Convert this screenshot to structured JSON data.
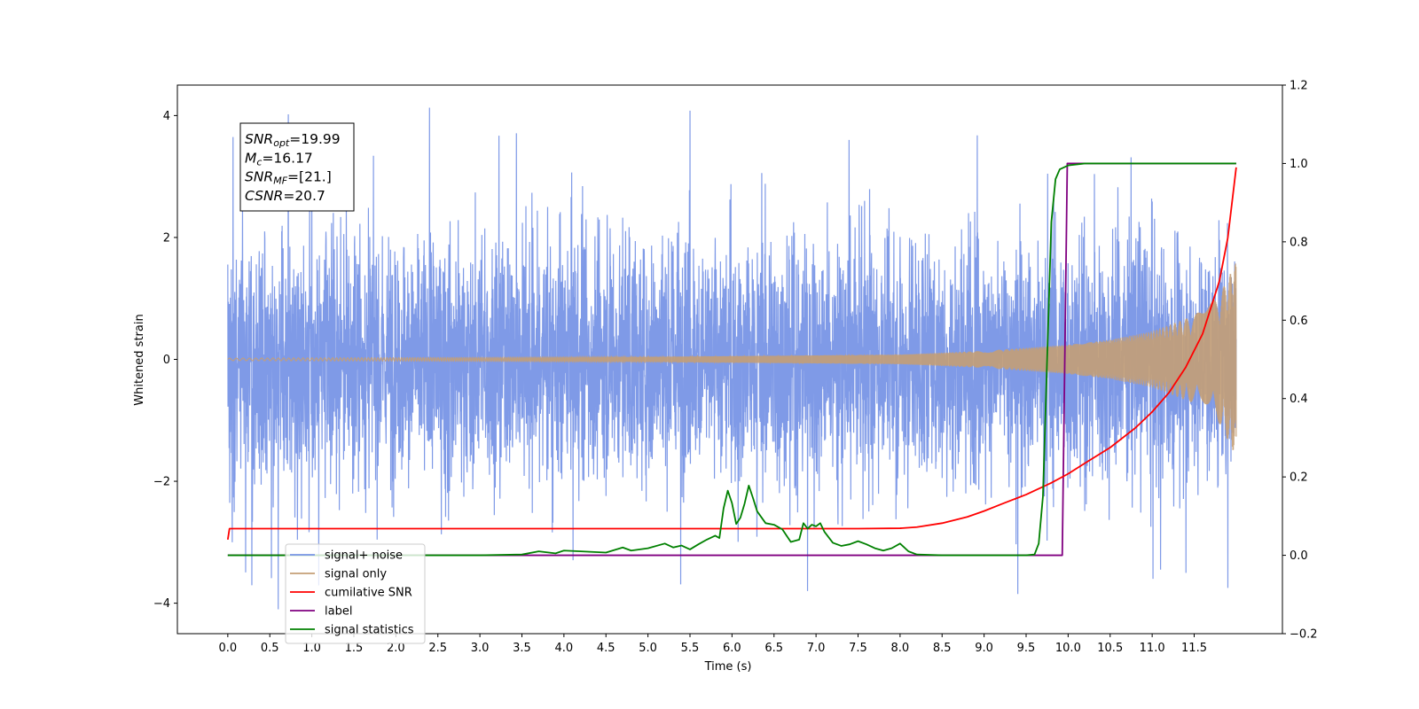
{
  "chart_data": {
    "type": "line",
    "xlabel": "Time (s)",
    "ylabel": "Whitened strain",
    "xlim": [
      -0.6,
      12.55
    ],
    "ylim": [
      -4.5,
      4.5
    ],
    "ylim_right": [
      -0.2,
      1.2
    ],
    "x_ticks": [
      "0.0",
      "0.5",
      "1.0",
      "1.5",
      "2.0",
      "2.5",
      "3.0",
      "3.5",
      "4.0",
      "4.5",
      "5.0",
      "5.5",
      "6.0",
      "6.5",
      "7.0",
      "7.5",
      "8.0",
      "8.5",
      "9.0",
      "9.5",
      "10.0",
      "10.5",
      "11.0",
      "11.5"
    ],
    "y_ticks_left": [
      "−4",
      "−2",
      "0",
      "2",
      "4"
    ],
    "y_ticks_right": [
      "−0.2",
      "0.0",
      "0.2",
      "0.4",
      "0.6",
      "0.8",
      "1.0",
      "1.2"
    ],
    "grid": false,
    "legend_position": "lower-left",
    "annotation": {
      "lines": [
        {
          "base": "SNR",
          "sub": "opt",
          "rest": "=19.99"
        },
        {
          "base": "M",
          "sub": "c",
          "rest": "=16.17"
        },
        {
          "base": "SNR",
          "sub": "MF",
          "rest": "=[21.]"
        },
        {
          "base": "CSNR",
          "sub": "",
          "rest": "=20.7"
        }
      ]
    },
    "series": [
      {
        "name": "signal+ noise",
        "axis": "left",
        "color": "#7895e6",
        "t_range": [
          0.0,
          12.0
        ],
        "envelope_approx": {
          "typical_amplitude": 2.0,
          "min": -4.1,
          "max": 4.1
        },
        "noted_extremes": [
          {
            "x": 0.6,
            "y": -4.1
          },
          {
            "x": 0.72,
            "y": 4.02
          },
          {
            "x": 2.4,
            "y": 4.13
          },
          {
            "x": 5.5,
            "y": 4.08
          },
          {
            "x": 6.9,
            "y": -3.8
          },
          {
            "x": 9.4,
            "y": -3.85
          },
          {
            "x": 11.1,
            "y": -3.45
          },
          {
            "x": 11.9,
            "y": -3.75
          }
        ]
      },
      {
        "name": "signal only",
        "axis": "left",
        "color": "#c49f76",
        "t_range": [
          0.0,
          12.0
        ],
        "envelope": {
          "x": [
            0,
            5,
            8,
            9,
            10,
            10.5,
            11,
            11.5,
            11.8,
            12.0
          ],
          "amp": [
            0.02,
            0.04,
            0.08,
            0.14,
            0.24,
            0.32,
            0.46,
            0.72,
            1.05,
            1.6
          ]
        }
      },
      {
        "name": "cumilative SNR",
        "axis": "right",
        "color": "#ff0000",
        "x": [
          0.0,
          0.02,
          1,
          2,
          3,
          4,
          5,
          6,
          7,
          7.5,
          8.0,
          8.2,
          8.5,
          8.8,
          9.0,
          9.2,
          9.5,
          9.8,
          10.0,
          10.2,
          10.5,
          10.8,
          11.0,
          11.2,
          11.4,
          11.6,
          11.8,
          11.9,
          12.0
        ],
        "y": [
          0.04,
          0.068,
          0.068,
          0.068,
          0.068,
          0.068,
          0.068,
          0.068,
          0.068,
          0.068,
          0.069,
          0.072,
          0.082,
          0.098,
          0.113,
          0.13,
          0.155,
          0.185,
          0.208,
          0.235,
          0.275,
          0.325,
          0.366,
          0.415,
          0.48,
          0.565,
          0.7,
          0.81,
          0.99
        ]
      },
      {
        "name": "label",
        "axis": "right",
        "color": "#800080",
        "x": [
          0.0,
          9.93,
          9.99,
          12.0
        ],
        "y": [
          0.0,
          0.0,
          1.0,
          1.0
        ]
      },
      {
        "name": "signal statistics",
        "axis": "right",
        "color": "#008000",
        "x": [
          0.0,
          1.0,
          2.0,
          3.0,
          3.5,
          3.7,
          3.9,
          4.0,
          4.2,
          4.5,
          4.7,
          4.8,
          5.0,
          5.2,
          5.3,
          5.4,
          5.5,
          5.6,
          5.7,
          5.8,
          5.85,
          5.9,
          5.95,
          6.0,
          6.05,
          6.1,
          6.15,
          6.2,
          6.25,
          6.3,
          6.4,
          6.5,
          6.6,
          6.7,
          6.8,
          6.85,
          6.9,
          6.95,
          7.0,
          7.05,
          7.1,
          7.2,
          7.3,
          7.4,
          7.5,
          7.6,
          7.7,
          7.8,
          7.9,
          8.0,
          8.1,
          8.2,
          8.5,
          9.0,
          9.5,
          9.6,
          9.65,
          9.7,
          9.75,
          9.8,
          9.85,
          9.9,
          10.0,
          10.2,
          10.5,
          11.0,
          11.5,
          12.0
        ],
        "y": [
          0.0,
          0.0,
          0.0,
          0.0,
          0.002,
          0.01,
          0.005,
          0.012,
          0.01,
          0.007,
          0.02,
          0.012,
          0.018,
          0.03,
          0.02,
          0.025,
          0.015,
          0.028,
          0.04,
          0.05,
          0.044,
          0.12,
          0.165,
          0.133,
          0.08,
          0.096,
          0.132,
          0.178,
          0.146,
          0.112,
          0.082,
          0.078,
          0.066,
          0.034,
          0.04,
          0.082,
          0.068,
          0.078,
          0.074,
          0.082,
          0.06,
          0.032,
          0.024,
          0.028,
          0.036,
          0.028,
          0.018,
          0.012,
          0.018,
          0.03,
          0.01,
          0.002,
          0.0,
          0.0,
          0.0,
          0.002,
          0.03,
          0.15,
          0.5,
          0.85,
          0.96,
          0.985,
          0.995,
          1.0,
          1.0,
          1.0,
          1.0,
          1.0
        ]
      }
    ]
  }
}
